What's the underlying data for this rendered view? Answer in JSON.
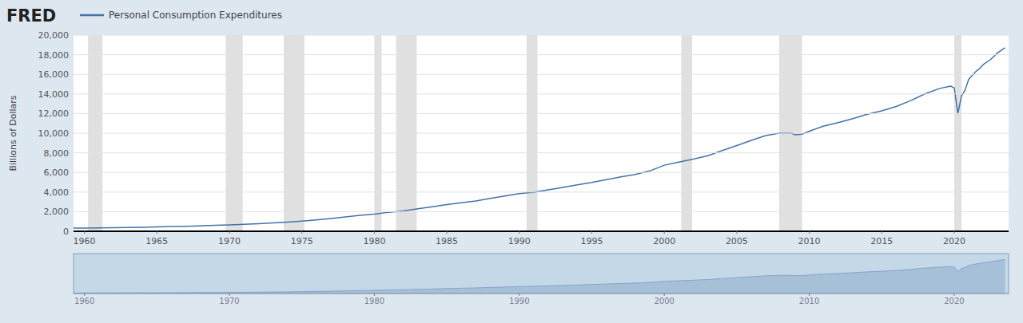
{
  "chart_data": [
    {
      "type": "line",
      "annotations": [
        {
          "text": "FRED"
        }
      ],
      "ylabel": "Billions of Dollars",
      "legend": "top-left",
      "grid": true,
      "xlim": [
        1959.25,
        2023.75
      ],
      "xticks": [
        1960,
        1965,
        1970,
        1975,
        1980,
        1985,
        1990,
        1995,
        2000,
        2005,
        2010,
        2015,
        2020
      ],
      "ylim": [
        0,
        20000
      ],
      "yticks": [
        0,
        {
          "value": 2000,
          "label": "2,000"
        },
        {
          "value": 4000,
          "label": "4,000"
        },
        {
          "value": 6000,
          "label": "6,000"
        },
        {
          "value": 8000,
          "label": "8,000"
        },
        {
          "value": 10000,
          "label": "10,000"
        },
        {
          "value": 12000,
          "label": "12,000"
        },
        {
          "value": 14000,
          "label": "14,000"
        },
        {
          "value": 16000,
          "label": "16,000"
        },
        {
          "value": 18000,
          "label": "18,000"
        },
        {
          "value": 20000,
          "label": "20,000"
        }
      ],
      "bands": [
        [
          1960.25,
          1961.25
        ],
        [
          1969.75,
          1970.92
        ],
        [
          1973.75,
          1975.17
        ],
        [
          1980.0,
          1980.5
        ],
        [
          1981.5,
          1982.92
        ],
        [
          1990.5,
          1991.25
        ],
        [
          2001.17,
          2001.92
        ],
        [
          2007.92,
          2009.5
        ],
        [
          2020.0,
          2020.5
        ]
      ],
      "x": [
        1959.25,
        1960.0,
        1961.0,
        1962.0,
        1963.0,
        1964.0,
        1965.0,
        1966.0,
        1967.0,
        1968.0,
        1969.0,
        1970.0,
        1971.0,
        1972.0,
        1973.0,
        1974.0,
        1975.0,
        1976.0,
        1977.0,
        1978.0,
        1979.0,
        1980.0,
        1981.0,
        1982.0,
        1983.0,
        1984.0,
        1985.0,
        1986.0,
        1987.0,
        1988.0,
        1989.0,
        1990.0,
        1991.0,
        1992.0,
        1993.0,
        1994.0,
        1995.0,
        1996.0,
        1997.0,
        1998.0,
        1999.0,
        2000.0,
        2001.0,
        2002.0,
        2003.0,
        2004.0,
        2005.0,
        2006.0,
        2007.0,
        2008.0,
        2008.75,
        2009.0,
        2009.5,
        2010.0,
        2011.0,
        2012.0,
        2013.0,
        2014.0,
        2015.0,
        2016.0,
        2017.0,
        2018.0,
        2019.0,
        2019.75,
        2020.0,
        2020.25,
        2020.5,
        2020.75,
        2021.0,
        2021.25,
        2021.5,
        2021.75,
        2022.0,
        2022.5,
        2023.0,
        2023.5
      ],
      "series": [
        {
          "name": "Personal Consumption Expenditures",
          "color": "#4472a8",
          "values": [
            316,
            330,
            342,
            363,
            383,
            411,
            443,
            480,
            507,
            552,
            601,
            648,
            702,
            770,
            852,
            931,
            1034,
            1163,
            1307,
            1472,
            1634,
            1757,
            1941,
            2077,
            2290,
            2503,
            2720,
            2900,
            3094,
            3349,
            3594,
            3839,
            3986,
            4235,
            4477,
            4743,
            4975,
            5256,
            5547,
            5796,
            6152,
            6739,
            7055,
            7350,
            7703,
            8226,
            8745,
            9269,
            9750,
            10013,
            10013,
            9847,
            9900,
            10202,
            10729,
            11083,
            11484,
            11932,
            12283,
            12729,
            13321,
            14027,
            14563,
            14800,
            14600,
            12000,
            13800,
            14400,
            15500,
            15900,
            16300,
            16600,
            17000,
            17500,
            18200,
            18700
          ]
        }
      ]
    },
    {
      "type": "area",
      "tick_labels": "x",
      "color": "#a0bcd4",
      "xlim": [
        1959.25,
        2023.75
      ],
      "xticks": [
        1960,
        1970,
        1980,
        1990,
        2000,
        2010,
        2020
      ],
      "ylim": [
        0,
        22000
      ],
      "x": [
        1959.25,
        1960.0,
        1961.0,
        1962.0,
        1963.0,
        1964.0,
        1965.0,
        1966.0,
        1967.0,
        1968.0,
        1969.0,
        1970.0,
        1971.0,
        1972.0,
        1973.0,
        1974.0,
        1975.0,
        1976.0,
        1977.0,
        1978.0,
        1979.0,
        1980.0,
        1981.0,
        1982.0,
        1983.0,
        1984.0,
        1985.0,
        1986.0,
        1987.0,
        1988.0,
        1989.0,
        1990.0,
        1991.0,
        1992.0,
        1993.0,
        1994.0,
        1995.0,
        1996.0,
        1997.0,
        1998.0,
        1999.0,
        2000.0,
        2001.0,
        2002.0,
        2003.0,
        2004.0,
        2005.0,
        2006.0,
        2007.0,
        2008.0,
        2008.75,
        2009.0,
        2009.5,
        2010.0,
        2011.0,
        2012.0,
        2013.0,
        2014.0,
        2015.0,
        2016.0,
        2017.0,
        2018.0,
        2019.0,
        2019.75,
        2020.0,
        2020.25,
        2020.5,
        2020.75,
        2021.0,
        2021.25,
        2021.5,
        2021.75,
        2022.0,
        2022.5,
        2023.0,
        2023.5
      ],
      "series": [
        {
          "values": [
            316,
            330,
            342,
            363,
            383,
            411,
            443,
            480,
            507,
            552,
            601,
            648,
            702,
            770,
            852,
            931,
            1034,
            1163,
            1307,
            1472,
            1634,
            1757,
            1941,
            2077,
            2290,
            2503,
            2720,
            2900,
            3094,
            3349,
            3594,
            3839,
            3986,
            4235,
            4477,
            4743,
            4975,
            5256,
            5547,
            5796,
            6152,
            6739,
            7055,
            7350,
            7703,
            8226,
            8745,
            9269,
            9750,
            10013,
            10013,
            9847,
            9900,
            10202,
            10729,
            11083,
            11484,
            11932,
            12283,
            12729,
            13321,
            14027,
            14563,
            14800,
            14600,
            12000,
            13800,
            14400,
            15500,
            15900,
            16300,
            16600,
            17000,
            17500,
            18200,
            18700
          ]
        }
      ]
    }
  ]
}
